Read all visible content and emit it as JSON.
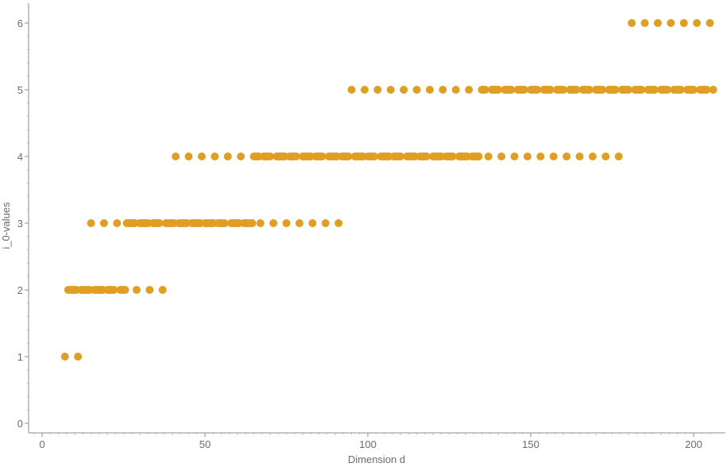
{
  "chart_data": {
    "type": "scatter",
    "xlabel": "Dimension d",
    "ylabel": "i_0-values",
    "xlim": [
      -4,
      207
    ],
    "ylim": [
      -0.1,
      6.25
    ],
    "xticks": [
      0,
      50,
      100,
      150,
      200
    ],
    "yticks": [
      0,
      1,
      2,
      3,
      4,
      5,
      6
    ],
    "grid": false,
    "color": "#E09F24",
    "series": [
      {
        "points": [
          [
            7,
            1
          ],
          [
            11,
            1
          ],
          [
            8,
            2
          ],
          [
            8.5,
            2
          ],
          [
            9,
            2
          ],
          [
            9.5,
            2
          ],
          [
            10,
            2
          ],
          [
            10.5,
            2
          ],
          [
            12,
            2
          ],
          [
            12.5,
            2
          ],
          [
            13,
            2
          ],
          [
            13.5,
            2
          ],
          [
            14,
            2
          ],
          [
            14.5,
            2
          ],
          [
            16,
            2
          ],
          [
            16.5,
            2
          ],
          [
            17,
            2
          ],
          [
            17.5,
            2
          ],
          [
            18,
            2
          ],
          [
            18.5,
            2
          ],
          [
            20,
            2
          ],
          [
            20.5,
            2
          ],
          [
            21,
            2
          ],
          [
            21.5,
            2
          ],
          [
            22,
            2
          ],
          [
            24,
            2
          ],
          [
            24.5,
            2
          ],
          [
            25,
            2
          ],
          [
            25.5,
            2
          ],
          [
            29,
            2
          ],
          [
            33,
            2
          ],
          [
            37,
            2
          ],
          [
            15,
            3
          ],
          [
            19,
            3
          ],
          [
            23,
            3
          ],
          [
            26,
            3
          ],
          [
            26.5,
            3
          ],
          [
            27,
            3
          ],
          [
            27.5,
            3
          ],
          [
            28,
            3
          ],
          [
            28.5,
            3
          ],
          [
            30,
            3
          ],
          [
            30.5,
            3
          ],
          [
            31,
            3
          ],
          [
            31.5,
            3
          ],
          [
            32,
            3
          ],
          [
            32.5,
            3
          ],
          [
            34,
            3
          ],
          [
            34.5,
            3
          ],
          [
            35,
            3
          ],
          [
            35.5,
            3
          ],
          [
            36,
            3
          ],
          [
            38,
            3
          ],
          [
            38.5,
            3
          ],
          [
            39,
            3
          ],
          [
            39.5,
            3
          ],
          [
            40,
            3
          ],
          [
            40.5,
            3
          ],
          [
            42,
            3
          ],
          [
            42.5,
            3
          ],
          [
            43,
            3
          ],
          [
            43.5,
            3
          ],
          [
            44,
            3
          ],
          [
            44.5,
            3
          ],
          [
            46,
            3
          ],
          [
            46.5,
            3
          ],
          [
            47,
            3
          ],
          [
            47.5,
            3
          ],
          [
            48,
            3
          ],
          [
            48.5,
            3
          ],
          [
            50,
            3
          ],
          [
            50.5,
            3
          ],
          [
            51,
            3
          ],
          [
            51.5,
            3
          ],
          [
            52,
            3
          ],
          [
            52.5,
            3
          ],
          [
            54,
            3
          ],
          [
            54.5,
            3
          ],
          [
            55,
            3
          ],
          [
            55.5,
            3
          ],
          [
            56,
            3
          ],
          [
            58,
            3
          ],
          [
            58.5,
            3
          ],
          [
            59,
            3
          ],
          [
            59.5,
            3
          ],
          [
            60,
            3
          ],
          [
            60.5,
            3
          ],
          [
            62,
            3
          ],
          [
            62.5,
            3
          ],
          [
            63,
            3
          ],
          [
            63.5,
            3
          ],
          [
            64,
            3
          ],
          [
            64.5,
            3
          ],
          [
            67,
            3
          ],
          [
            71,
            3
          ],
          [
            75,
            3
          ],
          [
            79,
            3
          ],
          [
            83,
            3
          ],
          [
            87,
            3
          ],
          [
            91,
            3
          ],
          [
            41,
            4
          ],
          [
            45,
            4
          ],
          [
            49,
            4
          ],
          [
            53,
            4
          ],
          [
            57,
            4
          ],
          [
            61,
            4
          ],
          [
            65,
            4
          ],
          [
            65.5,
            4
          ],
          [
            66,
            4
          ],
          [
            66.5,
            4
          ],
          [
            68,
            4
          ],
          [
            68.5,
            4
          ],
          [
            69,
            4
          ],
          [
            69.5,
            4
          ],
          [
            70,
            4
          ],
          [
            72,
            4
          ],
          [
            72.5,
            4
          ],
          [
            73,
            4
          ],
          [
            73.5,
            4
          ],
          [
            74,
            4
          ],
          [
            74.5,
            4
          ],
          [
            76,
            4
          ],
          [
            76.5,
            4
          ],
          [
            77,
            4
          ],
          [
            77.5,
            4
          ],
          [
            78,
            4
          ],
          [
            80,
            4
          ],
          [
            80.5,
            4
          ],
          [
            81,
            4
          ],
          [
            81.5,
            4
          ],
          [
            82,
            4
          ],
          [
            82.5,
            4
          ],
          [
            84,
            4
          ],
          [
            84.5,
            4
          ],
          [
            85,
            4
          ],
          [
            85.5,
            4
          ],
          [
            86,
            4
          ],
          [
            88,
            4
          ],
          [
            88.5,
            4
          ],
          [
            89,
            4
          ],
          [
            89.5,
            4
          ],
          [
            90,
            4
          ],
          [
            90.5,
            4
          ],
          [
            92,
            4
          ],
          [
            92.5,
            4
          ],
          [
            93,
            4
          ],
          [
            93.5,
            4
          ],
          [
            94,
            4
          ],
          [
            96,
            4
          ],
          [
            96.5,
            4
          ],
          [
            97,
            4
          ],
          [
            97.5,
            4
          ],
          [
            98,
            4
          ],
          [
            98.5,
            4
          ],
          [
            100,
            4
          ],
          [
            100.5,
            4
          ],
          [
            101,
            4
          ],
          [
            101.5,
            4
          ],
          [
            102,
            4
          ],
          [
            104,
            4
          ],
          [
            104.5,
            4
          ],
          [
            105,
            4
          ],
          [
            105.5,
            4
          ],
          [
            106,
            4
          ],
          [
            106.5,
            4
          ],
          [
            108,
            4
          ],
          [
            108.5,
            4
          ],
          [
            109,
            4
          ],
          [
            109.5,
            4
          ],
          [
            110,
            4
          ],
          [
            112,
            4
          ],
          [
            112.5,
            4
          ],
          [
            113,
            4
          ],
          [
            113.5,
            4
          ],
          [
            114,
            4
          ],
          [
            114.5,
            4
          ],
          [
            116,
            4
          ],
          [
            116.5,
            4
          ],
          [
            117,
            4
          ],
          [
            117.5,
            4
          ],
          [
            118,
            4
          ],
          [
            120,
            4
          ],
          [
            120.5,
            4
          ],
          [
            121,
            4
          ],
          [
            121.5,
            4
          ],
          [
            122,
            4
          ],
          [
            122.5,
            4
          ],
          [
            124,
            4
          ],
          [
            124.5,
            4
          ],
          [
            125,
            4
          ],
          [
            125.5,
            4
          ],
          [
            126,
            4
          ],
          [
            128,
            4
          ],
          [
            128.5,
            4
          ],
          [
            129,
            4
          ],
          [
            129.5,
            4
          ],
          [
            130,
            4
          ],
          [
            130.5,
            4
          ],
          [
            132,
            4
          ],
          [
            132.5,
            4
          ],
          [
            133,
            4
          ],
          [
            133.5,
            4
          ],
          [
            134,
            4
          ],
          [
            137,
            4
          ],
          [
            141,
            4
          ],
          [
            145,
            4
          ],
          [
            149,
            4
          ],
          [
            153,
            4
          ],
          [
            157,
            4
          ],
          [
            161,
            4
          ],
          [
            165,
            4
          ],
          [
            169,
            4
          ],
          [
            173,
            4
          ],
          [
            177,
            4
          ],
          [
            95,
            5
          ],
          [
            99,
            5
          ],
          [
            103,
            5
          ],
          [
            107,
            5
          ],
          [
            111,
            5
          ],
          [
            115,
            5
          ],
          [
            119,
            5
          ],
          [
            123,
            5
          ],
          [
            127,
            5
          ],
          [
            131,
            5
          ],
          [
            135,
            5
          ],
          [
            135.5,
            5
          ],
          [
            136,
            5
          ],
          [
            138,
            5
          ],
          [
            138.5,
            5
          ],
          [
            139,
            5
          ],
          [
            139.5,
            5
          ],
          [
            140,
            5
          ],
          [
            142,
            5
          ],
          [
            142.5,
            5
          ],
          [
            143,
            5
          ],
          [
            143.5,
            5
          ],
          [
            144,
            5
          ],
          [
            146,
            5
          ],
          [
            146.5,
            5
          ],
          [
            147,
            5
          ],
          [
            147.5,
            5
          ],
          [
            148,
            5
          ],
          [
            150,
            5
          ],
          [
            150.5,
            5
          ],
          [
            151,
            5
          ],
          [
            151.5,
            5
          ],
          [
            152,
            5
          ],
          [
            154,
            5
          ],
          [
            154.5,
            5
          ],
          [
            155,
            5
          ],
          [
            155.5,
            5
          ],
          [
            156,
            5
          ],
          [
            158,
            5
          ],
          [
            158.5,
            5
          ],
          [
            159,
            5
          ],
          [
            159.5,
            5
          ],
          [
            160,
            5
          ],
          [
            162,
            5
          ],
          [
            162.5,
            5
          ],
          [
            163,
            5
          ],
          [
            163.5,
            5
          ],
          [
            164,
            5
          ],
          [
            166,
            5
          ],
          [
            166.5,
            5
          ],
          [
            167,
            5
          ],
          [
            167.5,
            5
          ],
          [
            168,
            5
          ],
          [
            170,
            5
          ],
          [
            170.5,
            5
          ],
          [
            171,
            5
          ],
          [
            171.5,
            5
          ],
          [
            172,
            5
          ],
          [
            174,
            5
          ],
          [
            174.5,
            5
          ],
          [
            175,
            5
          ],
          [
            175.5,
            5
          ],
          [
            176,
            5
          ],
          [
            178,
            5
          ],
          [
            178.5,
            5
          ],
          [
            179,
            5
          ],
          [
            179.5,
            5
          ],
          [
            180,
            5
          ],
          [
            182,
            5
          ],
          [
            182.5,
            5
          ],
          [
            183,
            5
          ],
          [
            183.5,
            5
          ],
          [
            184,
            5
          ],
          [
            186,
            5
          ],
          [
            186.5,
            5
          ],
          [
            187,
            5
          ],
          [
            187.5,
            5
          ],
          [
            188,
            5
          ],
          [
            190,
            5
          ],
          [
            190.5,
            5
          ],
          [
            191,
            5
          ],
          [
            191.5,
            5
          ],
          [
            192,
            5
          ],
          [
            194,
            5
          ],
          [
            194.5,
            5
          ],
          [
            195,
            5
          ],
          [
            195.5,
            5
          ],
          [
            196,
            5
          ],
          [
            198,
            5
          ],
          [
            198.5,
            5
          ],
          [
            199,
            5
          ],
          [
            199.5,
            5
          ],
          [
            200,
            5
          ],
          [
            202,
            5
          ],
          [
            202.5,
            5
          ],
          [
            203,
            5
          ],
          [
            203.5,
            5
          ],
          [
            204,
            5
          ],
          [
            206,
            5
          ],
          [
            181,
            6
          ],
          [
            185,
            6
          ],
          [
            189,
            6
          ],
          [
            193,
            6
          ],
          [
            197,
            6
          ],
          [
            201,
            6
          ],
          [
            205,
            6
          ]
        ]
      }
    ]
  }
}
